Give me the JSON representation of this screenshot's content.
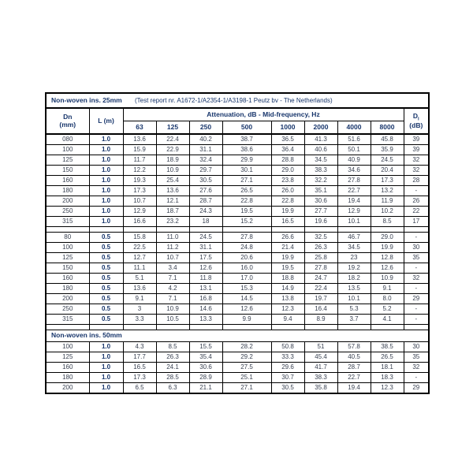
{
  "table": {
    "title": "Non-woven ins. 25mm",
    "report_note": "(Test report nr. A1672-1/A2354-1/A3198-1 Peutz bv - The Netherlands)",
    "headers": {
      "dn": "Dn",
      "dn_unit": "(mm)",
      "l": "L (m)",
      "attenuation": "Attenuation, dB - Mid-frequency, Hz",
      "frequencies": [
        "63",
        "125",
        "250",
        "500",
        "1000",
        "2000",
        "4000",
        "8000"
      ],
      "d": "D",
      "d_sub": "i",
      "d_unit": "(dB)"
    },
    "sections": [
      {
        "separator_after": true,
        "rows": [
          {
            "dn": "080",
            "l": "1.0",
            "values": [
              "13.6",
              "22.4",
              "40.2",
              "38.7",
              "36.5",
              "41.3",
              "51.6",
              "45.8"
            ],
            "d": "39"
          },
          {
            "dn": "100",
            "l": "1.0",
            "values": [
              "15.9",
              "22.9",
              "31.1",
              "38.6",
              "36.4",
              "40.6",
              "50.1",
              "35.9"
            ],
            "d": "39"
          },
          {
            "dn": "125",
            "l": "1.0",
            "values": [
              "11.7",
              "18.9",
              "32.4",
              "29.9",
              "28.8",
              "34.5",
              "40.9",
              "24.5"
            ],
            "d": "32"
          },
          {
            "dn": "150",
            "l": "1.0",
            "values": [
              "12.2",
              "10.9",
              "29.7",
              "30.1",
              "29.0",
              "38.3",
              "34.6",
              "20.4"
            ],
            "d": "32"
          },
          {
            "dn": "160",
            "l": "1.0",
            "values": [
              "19.3",
              "25.4",
              "30.5",
              "27.1",
              "23.8",
              "32.2",
              "27.8",
              "17.3"
            ],
            "d": "28"
          },
          {
            "dn": "180",
            "l": "1.0",
            "values": [
              "17.3",
              "13.6",
              "27.6",
              "26.5",
              "26.0",
              "35.1",
              "22.7",
              "13.2"
            ],
            "d": "-"
          },
          {
            "dn": "200",
            "l": "1.0",
            "values": [
              "10.7",
              "12.1",
              "28.7",
              "22.8",
              "22.8",
              "30.6",
              "19.4",
              "11.9"
            ],
            "d": "26"
          },
          {
            "dn": "250",
            "l": "1.0",
            "values": [
              "12.9",
              "18.7",
              "24.3",
              "19.5",
              "19.9",
              "27.7",
              "12.9",
              "10.2"
            ],
            "d": "22"
          },
          {
            "dn": "315",
            "l": "1.0",
            "values": [
              "16.6",
              "23.2",
              "18",
              "15.2",
              "16.5",
              "19.6",
              "10.1",
              "8.5"
            ],
            "d": "17"
          }
        ]
      },
      {
        "separator_after": true,
        "rows": [
          {
            "dn": "80",
            "l": "0.5",
            "values": [
              "15.8",
              "11.0",
              "24.5",
              "27.8",
              "26.6",
              "32.5",
              "46.7",
              "29.0"
            ],
            "d": "-"
          },
          {
            "dn": "100",
            "l": "0.5",
            "values": [
              "22.5",
              "11.2",
              "31.1",
              "24.8",
              "21.4",
              "26.3",
              "34.5",
              "19.9"
            ],
            "d": "30"
          },
          {
            "dn": "125",
            "l": "0.5",
            "values": [
              "12.7",
              "10.7",
              "17.5",
              "20.6",
              "19.9",
              "25.8",
              "23",
              "12.8"
            ],
            "d": "35"
          },
          {
            "dn": "150",
            "l": "0.5",
            "values": [
              "11.1",
              "3.4",
              "12.6",
              "16.0",
              "19.5",
              "27.8",
              "19.2",
              "12.6"
            ],
            "d": "-"
          },
          {
            "dn": "160",
            "l": "0.5",
            "values": [
              "5.1",
              "7.1",
              "11.8",
              "17.0",
              "18.8",
              "24.7",
              "18.2",
              "10.9"
            ],
            "d": "32"
          },
          {
            "dn": "180",
            "l": "0.5",
            "values": [
              "13.6",
              "4.2",
              "13.1",
              "15.3",
              "14.9",
              "22.4",
              "13.5",
              "9.1"
            ],
            "d": "-"
          },
          {
            "dn": "200",
            "l": "0.5",
            "values": [
              "9.1",
              "7.1",
              "16.8",
              "14.5",
              "13.8",
              "19.7",
              "10.1",
              "8.0"
            ],
            "d": "29"
          },
          {
            "dn": "250",
            "l": "0.5",
            "values": [
              "3",
              "10.9",
              "14.6",
              "12.6",
              "12.3",
              "16.4",
              "5.3",
              "5.2"
            ],
            "d": "-"
          },
          {
            "dn": "315",
            "l": "0.5",
            "values": [
              "3.3",
              "10.5",
              "13.3",
              "9.9",
              "9.4",
              "8.9",
              "3.7",
              "4.1"
            ],
            "d": "-"
          }
        ]
      },
      {
        "heading": "Non-woven ins. 50mm",
        "rows": [
          {
            "dn": "100",
            "l": "1.0",
            "values": [
              "4.3",
              "8.5",
              "15.5",
              "28.2",
              "50.8",
              "51",
              "57.8",
              "38.5"
            ],
            "d": "30"
          },
          {
            "dn": "125",
            "l": "1.0",
            "values": [
              "17.7",
              "26.3",
              "35.4",
              "29.2",
              "33.3",
              "45.4",
              "40.5",
              "26.5"
            ],
            "d": "35"
          },
          {
            "dn": "160",
            "l": "1.0",
            "values": [
              "16.5",
              "24.1",
              "30.6",
              "27.5",
              "29.6",
              "41.7",
              "28.7",
              "18.1"
            ],
            "d": "32"
          },
          {
            "dn": "180",
            "l": "1.0",
            "values": [
              "17.3",
              "28.5",
              "28.9",
              "25.1",
              "30.7",
              "38.3",
              "22.7",
              "18.3"
            ],
            "d": "-"
          },
          {
            "dn": "200",
            "l": "1.0",
            "values": [
              "6.5",
              "6.3",
              "21.1",
              "27.1",
              "30.5",
              "35.8",
              "19.4",
              "12.3"
            ],
            "d": "29"
          }
        ]
      }
    ]
  }
}
